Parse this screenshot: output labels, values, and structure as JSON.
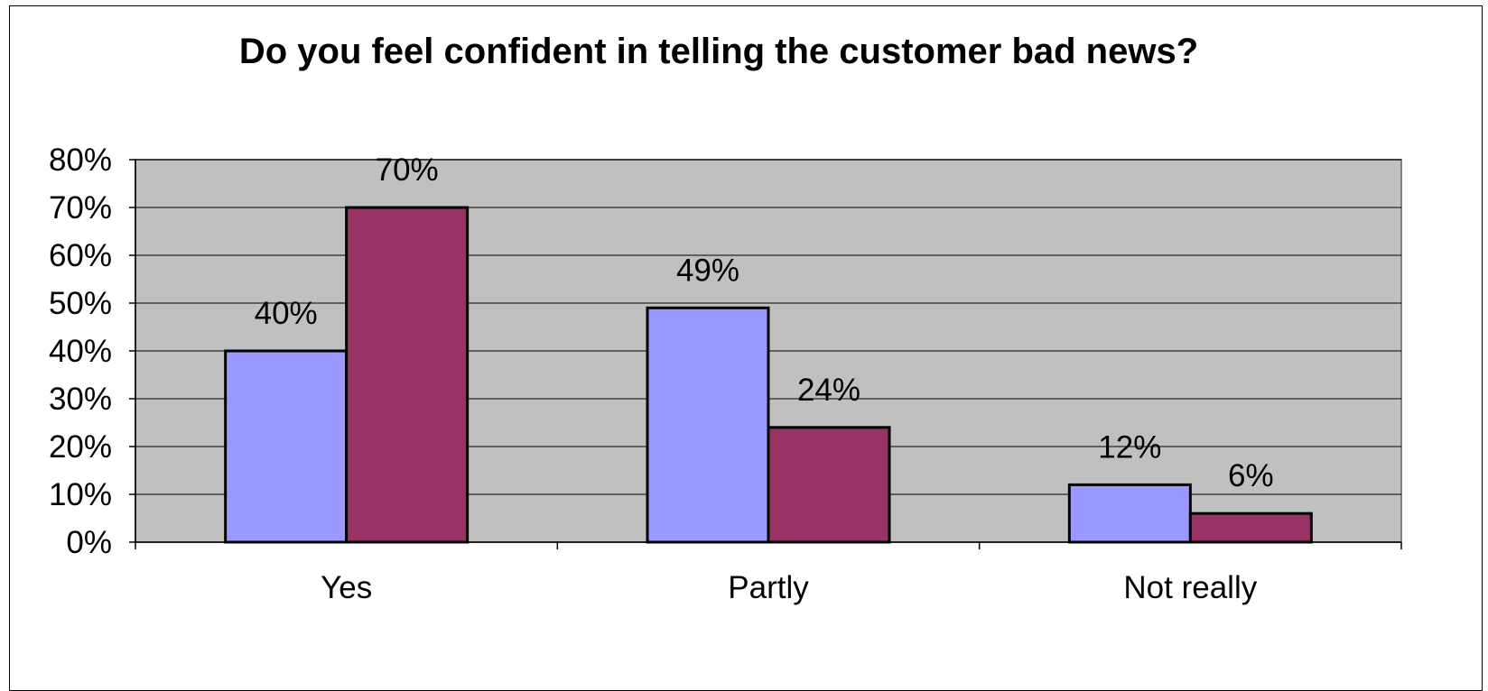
{
  "chart_data": {
    "type": "bar",
    "title": "Do you feel confident in telling the customer bad news?",
    "xlabel": "",
    "ylabel": "",
    "categories": [
      "Yes",
      "Partly",
      "Not really"
    ],
    "series": [
      {
        "values": [
          40,
          49,
          12
        ],
        "labels": [
          "40%",
          "49%",
          "12%"
        ],
        "color": "#9999ff"
      },
      {
        "values": [
          70,
          24,
          6
        ],
        "labels": [
          "70%",
          "24%",
          "6%"
        ],
        "color": "#993366"
      }
    ],
    "y_ticks": [
      "0%",
      "10%",
      "20%",
      "30%",
      "40%",
      "50%",
      "60%",
      "70%",
      "80%"
    ],
    "ylim": [
      0,
      80
    ],
    "y_step": 10,
    "grid": true,
    "legend": "none",
    "plot_background": "#c0c0c0"
  }
}
